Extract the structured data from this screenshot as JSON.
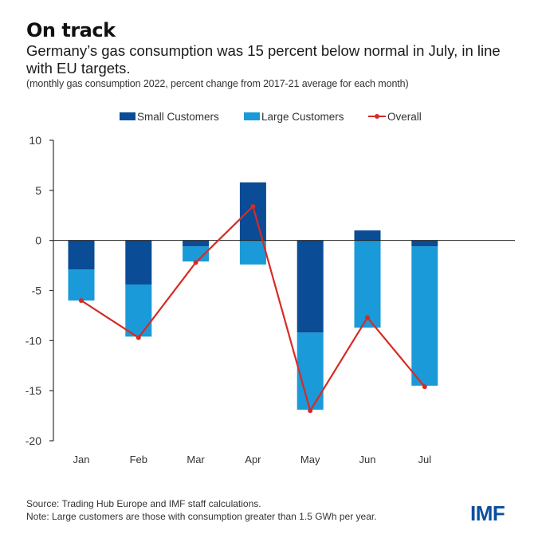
{
  "header": {
    "title": "On track",
    "subtitle": "Germany’s gas consumption was 15 percent below normal in July, in line with EU targets.",
    "note": "(monthly gas consumption 2022, percent change from 2017-21 average for each month)"
  },
  "legend": {
    "small": "Small Customers",
    "large": "Large Customers",
    "overall": "Overall"
  },
  "colors": {
    "small": "#0a4c95",
    "large": "#1a9ad8",
    "overall": "#d62b25",
    "axis": "#333333"
  },
  "footer": {
    "source": "Source: Trading Hub Europe and IMF staff calculations.",
    "note": "Note: Large customers are those with consumption greater than 1.5 GWh per year.",
    "logo": "IMF"
  },
  "chart_data": {
    "type": "bar",
    "stacked": true,
    "title": "On track",
    "xlabel": "",
    "ylabel": "",
    "categories": [
      "Jan",
      "Feb",
      "Mar",
      "Apr",
      "May",
      "Jun",
      "Jul"
    ],
    "series": [
      {
        "name": "Small Customers",
        "type": "bar",
        "values": [
          -2.9,
          -4.4,
          -0.6,
          5.8,
          -9.2,
          1.0,
          -0.6
        ]
      },
      {
        "name": "Large Customers",
        "type": "bar",
        "values": [
          -3.1,
          -5.2,
          -1.5,
          -2.4,
          -7.7,
          -8.7,
          -13.9
        ]
      },
      {
        "name": "Overall",
        "type": "line",
        "values": [
          -6.0,
          -9.7,
          -2.2,
          3.4,
          -17.0,
          -7.7,
          -14.6
        ]
      }
    ],
    "ylim": [
      -20,
      10
    ],
    "yticks": [
      10,
      5,
      0,
      -5,
      -10,
      -15,
      -20
    ],
    "grid": false,
    "legend_position": "top-center"
  }
}
